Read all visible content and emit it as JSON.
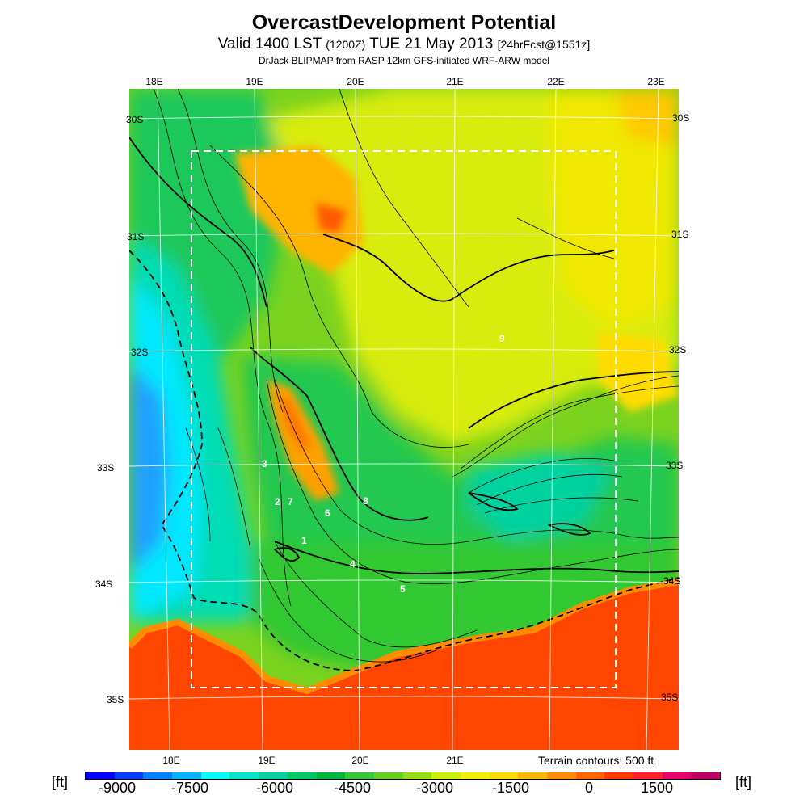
{
  "title": "OvercastDevelopment Potential",
  "subtitle": {
    "valid": "Valid 1400 LST",
    "utc": "(1200Z)",
    "date": "TUE 21 May 2013",
    "forecast": "[24hrFcst@1551z]"
  },
  "source": "DrJack BLIPMAP from RASP 12km GFS-initiated WRF-ARW model",
  "terrain_note": "Terrain contours: 500 ft",
  "units": "[ft]",
  "longitudes_top": [
    "18E",
    "19E",
    "20E",
    "21E",
    "22E",
    "23E"
  ],
  "longitudes_bottom": [
    "18E",
    "19E",
    "20E",
    "21E"
  ],
  "latitudes_left": [
    "30S",
    "31S",
    "32S",
    "33S",
    "34S",
    "35S"
  ],
  "latitudes_right": [
    "30S",
    "31S",
    "32S",
    "33S",
    "34S",
    "35S"
  ],
  "station_labels": [
    "1",
    "2",
    "3",
    "4",
    "5",
    "6",
    "7",
    "8",
    "9"
  ],
  "colorbar": {
    "ticks": [
      "-9000",
      "-7500",
      "-6000",
      "-4500",
      "-3000",
      "-1500",
      "0",
      "1500"
    ],
    "colors": [
      "#0000ff",
      "#0040ff",
      "#0080ff",
      "#00b4ff",
      "#00ffff",
      "#00e6c8",
      "#00d2a0",
      "#00c864",
      "#00b43c",
      "#32c832",
      "#64d21e",
      "#96dc14",
      "#c8f000",
      "#f0f000",
      "#ffdc00",
      "#ffb400",
      "#ff8c00",
      "#ff6400",
      "#ff3c00",
      "#ff1e28",
      "#e6006e",
      "#be0064"
    ]
  },
  "palette": {
    "ocean_deep": "#0096ff",
    "ocean": "#00e6ff",
    "teal": "#00d2a0",
    "green": "#00c850",
    "lime": "#8cdc1e",
    "yellow": "#e6f000",
    "orange": "#ffa000",
    "red": "#ff4000"
  }
}
